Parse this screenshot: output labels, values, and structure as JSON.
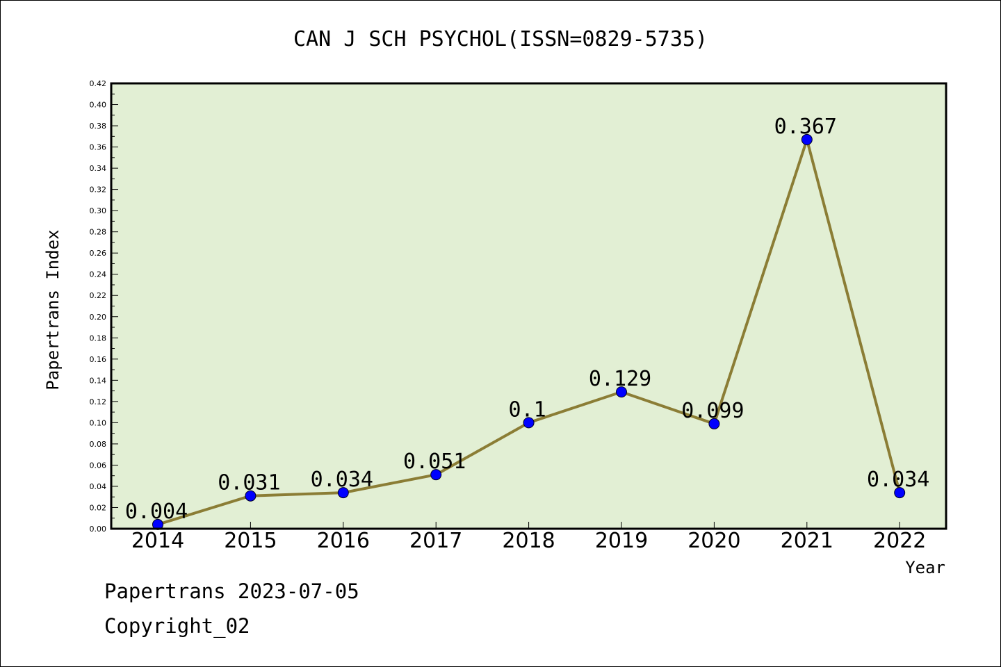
{
  "chart_data": {
    "type": "line",
    "title": "CAN J SCH PSYCHOL(ISSN=0829-5735)",
    "xlabel": "Year",
    "ylabel": "Papertrans Index",
    "categories": [
      "2014",
      "2015",
      "2016",
      "2017",
      "2018",
      "2019",
      "2020",
      "2021",
      "2022"
    ],
    "series": [
      {
        "values": [
          0.004,
          0.031,
          0.034,
          0.051,
          0.1,
          0.129,
          0.099,
          0.367,
          0.034
        ],
        "labels": [
          "0.004",
          "0.031",
          "0.034",
          "0.051",
          "0.1",
          "0.129",
          "0.099",
          "0.367",
          "0.034"
        ]
      }
    ],
    "ylim": [
      0,
      0.42
    ],
    "yticks": [
      "0.00",
      "0.02",
      "0.04",
      "0.06",
      "0.08",
      "0.10",
      "0.12",
      "0.14",
      "0.16",
      "0.18",
      "0.20",
      "0.22",
      "0.24",
      "0.26",
      "0.28",
      "0.30",
      "0.32",
      "0.34",
      "0.36",
      "0.38",
      "0.40",
      "0.42"
    ],
    "grid": false,
    "colors": {
      "plot_background": "#e2efd4",
      "line": "#8b7d35",
      "marker": "#0000ff"
    }
  },
  "footer": {
    "date_line": "Papertrans 2023-07-05",
    "copyright": "Copyright_02"
  }
}
